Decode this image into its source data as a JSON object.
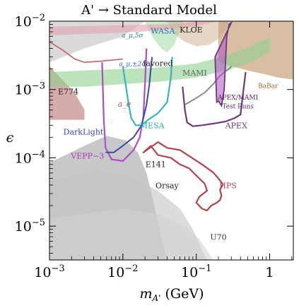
{
  "chart_data": {
    "type": "area",
    "title": "A' → Standard Model",
    "xlabel": "m_A' (GeV)",
    "ylabel": "ϵ",
    "xscale": "log",
    "yscale": "log",
    "xlim": [
      0.001,
      2.1
    ],
    "ylim": [
      3.2e-06,
      0.01
    ],
    "x_ticks": [
      {
        "value": 0.001,
        "base": "10",
        "exp": "−3"
      },
      {
        "value": 0.01,
        "base": "10",
        "exp": "−2"
      },
      {
        "value": 0.1,
        "base": "10",
        "exp": "−1"
      },
      {
        "value": 1,
        "base": "1",
        "exp": ""
      }
    ],
    "y_ticks": [
      {
        "value": 1e-05,
        "base": "10",
        "exp": "−5"
      },
      {
        "value": 0.0001,
        "base": "10",
        "exp": "−4"
      },
      {
        "value": 0.001,
        "base": "10",
        "exp": "−3"
      },
      {
        "value": 0.01,
        "base": "10",
        "exp": "−2"
      }
    ],
    "colors": {
      "beam_dump": "#9a9a9a",
      "orsay": "#c4c4c4",
      "u70": "#d2d2d2",
      "e774": "#b06868",
      "babar": "#c9a27e",
      "g2_band": "#8fd08f",
      "hps": "#b0454f",
      "apex": "#6b3a7a",
      "mesa": "#3bb3bf",
      "vepp": "#b04fc4",
      "darklight": "#3a4aa8",
      "mami": "#8a8a8a",
      "a_e": "#c07070"
    },
    "excluded_regions": [
      {
        "label": "E141",
        "points": [
          [
            0.001,
            3.2e-06
          ],
          [
            0.001,
            8.5e-05
          ],
          [
            0.003,
            0.00015
          ],
          [
            0.006,
            0.00021
          ],
          [
            0.011,
            0.00018
          ],
          [
            0.016,
            0.00012
          ],
          [
            0.021,
            6e-05
          ],
          [
            0.024,
            3.4e-05
          ],
          [
            0.028,
            1.6e-05
          ],
          [
            0.034,
            6.5e-06
          ],
          [
            0.04,
            3.2e-06
          ]
        ]
      },
      {
        "label": "Orsay",
        "points": [
          [
            0.001,
            3.2e-06
          ],
          [
            0.001,
            4.5e-05
          ],
          [
            0.004,
            6.5e-05
          ],
          [
            0.012,
            5.5e-05
          ],
          [
            0.03,
            3.3e-05
          ],
          [
            0.06,
            1.8e-05
          ],
          [
            0.09,
            9e-06
          ],
          [
            0.12,
            4.5e-06
          ],
          [
            0.14,
            3.2e-06
          ]
        ]
      },
      {
        "label": "U70",
        "points": [
          [
            0.001,
            3.2e-06
          ],
          [
            0.001,
            1.3e-05
          ],
          [
            0.01,
            1.8e-05
          ],
          [
            0.03,
            1.5e-05
          ],
          [
            0.07,
            1e-05
          ],
          [
            0.11,
            6.5e-06
          ],
          [
            0.15,
            4e-06
          ],
          [
            0.17,
            3.2e-06
          ]
        ]
      },
      {
        "label": "E774",
        "points": [
          [
            0.001,
            0.00036
          ],
          [
            0.001,
            0.0022
          ],
          [
            0.0014,
            0.0015
          ],
          [
            0.0022,
            0.0009
          ],
          [
            0.003,
            0.0005
          ],
          [
            0.003,
            0.00036
          ]
        ]
      },
      {
        "label": "BaBar",
        "points": [
          [
            0.2,
            0.01
          ],
          [
            0.2,
            0.0026
          ],
          [
            0.23,
            0.0024
          ],
          [
            0.3,
            0.0022
          ],
          [
            0.5,
            0.0019
          ],
          [
            0.8,
            0.0017
          ],
          [
            1.3,
            0.0015
          ],
          [
            2.1,
            0.0014
          ],
          [
            2.1,
            0.01
          ]
        ]
      },
      {
        "label": "KLOE",
        "points": [
          [
            0.04,
            0.01
          ],
          [
            0.05,
            0.0065
          ],
          [
            0.07,
            0.005
          ],
          [
            0.1,
            0.0043
          ],
          [
            0.15,
            0.0045
          ],
          [
            0.2,
            0.0055
          ],
          [
            0.25,
            0.0075
          ],
          [
            0.28,
            0.01
          ]
        ]
      },
      {
        "label": "WASA",
        "points": [
          [
            0.02,
            0.01
          ],
          [
            0.025,
            0.006
          ],
          [
            0.033,
            0.004
          ],
          [
            0.04,
            0.0035
          ],
          [
            0.05,
            0.0045
          ],
          [
            0.06,
            0.0075
          ],
          [
            0.065,
            0.01
          ]
        ]
      }
    ],
    "bands": [
      {
        "label": "a_μ,5σ",
        "points": [
          [
            0.001,
            0.0062
          ],
          [
            0.003,
            0.0065
          ],
          [
            0.01,
            0.0068
          ],
          [
            0.03,
            0.0073
          ],
          [
            0.1,
            0.0085
          ],
          [
            0.2,
            0.01
          ],
          [
            0.12,
            0.01
          ],
          [
            0.05,
            0.0091
          ],
          [
            0.01,
            0.0087
          ],
          [
            0.003,
            0.0085
          ],
          [
            0.001,
            0.0083
          ]
        ]
      },
      {
        "label": "a_μ,±2σ favored",
        "points": [
          [
            0.001,
            0.0018
          ],
          [
            0.003,
            0.0019
          ],
          [
            0.01,
            0.002
          ],
          [
            0.03,
            0.0021
          ],
          [
            0.1,
            0.0024
          ],
          [
            0.3,
            0.0033
          ],
          [
            0.6,
            0.0045
          ],
          [
            1,
            0.0058
          ],
          [
            1,
            0.0035
          ],
          [
            0.6,
            0.0026
          ],
          [
            0.3,
            0.002
          ],
          [
            0.1,
            0.0015
          ],
          [
            0.03,
            0.0013
          ],
          [
            0.01,
            0.0012
          ],
          [
            0.003,
            0.0011
          ],
          [
            0.001,
            0.0011
          ]
        ]
      }
    ],
    "projected_curves": [
      {
        "label": "HPS",
        "points": [
          [
            0.019,
            0.00012
          ],
          [
            0.024,
            0.00015
          ],
          [
            0.03,
            0.00011
          ],
          [
            0.045,
            0.0001
          ],
          [
            0.06,
            8e-05
          ],
          [
            0.08,
            7e-05
          ],
          [
            0.1,
            5.5e-05
          ],
          [
            0.13,
            4.2e-05
          ],
          [
            0.14,
            3.3e-05
          ],
          [
            0.11,
            2.7e-05
          ],
          [
            0.1,
            2.2e-05
          ],
          [
            0.12,
            1.8e-05
          ],
          [
            0.14,
            1.7e-05
          ],
          [
            0.16,
            2e-05
          ],
          [
            0.19,
            2.2e-05
          ],
          [
            0.21,
            2.4e-05
          ],
          [
            0.22,
            2.8e-05
          ],
          [
            0.21,
            3.4e-05
          ],
          [
            0.23,
            4.1e-05
          ],
          [
            0.2,
            5e-05
          ],
          [
            0.17,
            6.1e-05
          ],
          [
            0.12,
            8e-05
          ],
          [
            0.09,
            9.8e-05
          ],
          [
            0.06,
            0.00013
          ],
          [
            0.04,
            0.00014
          ],
          [
            0.03,
            0.00017
          ]
        ]
      },
      {
        "label": "APEX",
        "points": [
          [
            0.065,
            0.0011
          ],
          [
            0.07,
            0.0005
          ],
          [
            0.075,
            0.00033
          ],
          [
            0.09,
            0.00029
          ],
          [
            0.12,
            0.0003
          ],
          [
            0.18,
            0.00032
          ],
          [
            0.25,
            0.00034
          ],
          [
            0.33,
            0.00038
          ],
          [
            0.4,
            0.00043
          ],
          [
            0.47,
            0.0018
          ]
        ]
      },
      {
        "label": "MESA",
        "points": [
          [
            0.01,
            0.0022
          ],
          [
            0.012,
            0.0006
          ],
          [
            0.013,
            0.00038
          ],
          [
            0.015,
            0.0003
          ],
          [
            0.018,
            0.0003
          ],
          [
            0.022,
            0.00036
          ],
          [
            0.03,
            0.00045
          ],
          [
            0.04,
            0.00065
          ],
          [
            0.045,
            0.0015
          ],
          [
            0.047,
            0.003
          ]
        ]
      },
      {
        "label": "VEPP−3",
        "points": [
          [
            0.0052,
            0.0025
          ],
          [
            0.0055,
            0.00035
          ],
          [
            0.0058,
            0.00014
          ],
          [
            0.007,
            9.5e-05
          ],
          [
            0.01,
            9e-05
          ],
          [
            0.014,
            0.00013
          ],
          [
            0.017,
            0.0002
          ],
          [
            0.019,
            0.0004
          ],
          [
            0.02,
            0.0012
          ],
          [
            0.021,
            0.004
          ]
        ]
      },
      {
        "label": "DarkLight",
        "points": [
          [
            0.0058,
            0.00012
          ],
          [
            0.0075,
            0.00012
          ],
          [
            0.01,
            0.00015
          ],
          [
            0.014,
            0.0002
          ],
          [
            0.018,
            0.0003
          ],
          [
            0.021,
            0.0006
          ],
          [
            0.023,
            0.0012
          ],
          [
            0.024,
            0.002
          ],
          [
            0.025,
            0.003
          ]
        ]
      },
      {
        "label": "MAMI",
        "points": [
          [
            0.07,
            0.0006
          ],
          [
            0.1,
            0.00075
          ],
          [
            0.13,
            0.0009
          ],
          [
            0.17,
            0.0012
          ],
          [
            0.2,
            0.0015
          ],
          [
            0.24,
            0.0018
          ],
          [
            0.28,
            0.002
          ],
          [
            0.3,
            0.0022
          ]
        ]
      },
      {
        "label": "a_e",
        "points": [
          [
            0.001,
            0.005
          ],
          [
            0.0015,
            0.0038
          ],
          [
            0.0022,
            0.0028
          ],
          [
            0.003,
            0.0025
          ],
          [
            0.005,
            0.0026
          ],
          [
            0.01,
            0.0028
          ]
        ]
      },
      {
        "label": "APEX/MAMI Test Runs",
        "points": [
          [
            0.18,
            0.003
          ],
          [
            0.19,
            0.00065
          ],
          [
            0.2,
            0.00068
          ],
          [
            0.22,
            0.00058
          ],
          [
            0.24,
            0.001
          ],
          [
            0.26,
            0.006
          ],
          [
            0.28,
            0.009
          ],
          [
            0.3,
            0.0095
          ]
        ]
      }
    ],
    "region_labels": [
      {
        "text": "E774",
        "color": "#222222"
      },
      {
        "text": "KLOE",
        "color": "#222222"
      },
      {
        "text": "WASA",
        "color": "#2a6fb0"
      },
      {
        "text": "BaBar",
        "color": "#a0652a"
      },
      {
        "text": "MAMI",
        "color": "#666666"
      },
      {
        "text": "APEX/MAMI",
        "color": "#5a2a6a"
      },
      {
        "text": "Test Runs",
        "color": "#5a2a6a"
      },
      {
        "text": "APEX",
        "color": "#6b3a7a"
      },
      {
        "text": "MESA",
        "color": "#2fa6b2"
      },
      {
        "text": "DarkLight",
        "color": "#3a4aa8"
      },
      {
        "text": "VEPP−3",
        "color": "#a040b8"
      },
      {
        "text": "E141",
        "color": "#222222"
      },
      {
        "text": "Orsay",
        "color": "#222222"
      },
      {
        "text": "HPS",
        "color": "#b0454f"
      },
      {
        "text": "U70",
        "color": "#333333"
      },
      {
        "text": "a_e",
        "color": "#a05050"
      },
      {
        "text": "a_μ,5σ",
        "color": "#2a6fb0"
      },
      {
        "text": "a_μ,±2σ",
        "color": "#2a6fb0"
      },
      {
        "text": "favored",
        "color": "#222222"
      }
    ],
    "grid": false,
    "legend": "none"
  }
}
